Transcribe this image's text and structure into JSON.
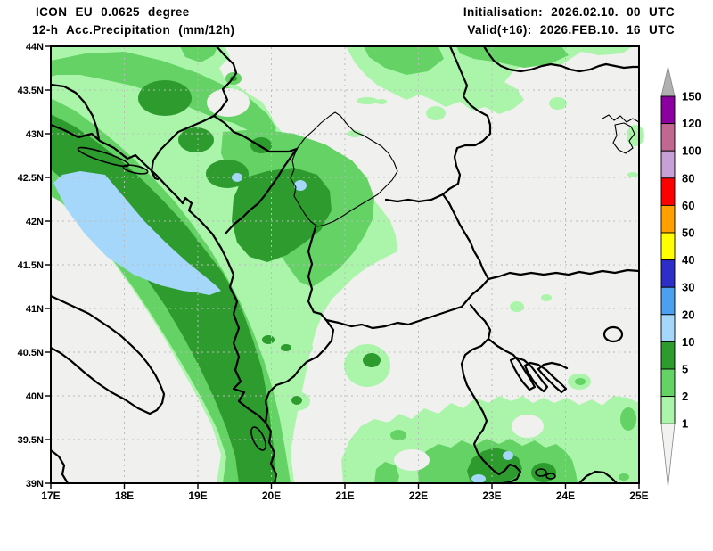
{
  "header": {
    "model_line": "ICON EU 0.0625 degree",
    "product_line": "12-h Acc.Precipitation (mm/12h)",
    "init_line": "Initialisation: 2026.02.10. 00 UTC",
    "valid_line": "Valid(+16): 2026.FEB.10. 16 UTC"
  },
  "map": {
    "extent": {
      "lon_min": 17,
      "lon_max": 25,
      "lat_min": 39,
      "lat_max": 44
    },
    "lat_axis": {
      "labels": [
        {
          "text": "44N",
          "lat": 44
        },
        {
          "text": "43.5N",
          "lat": 43.5
        },
        {
          "text": "43N",
          "lat": 43
        },
        {
          "text": "42.5N",
          "lat": 42.5
        },
        {
          "text": "42N",
          "lat": 42
        },
        {
          "text": "41.5N",
          "lat": 41.5
        },
        {
          "text": "41N",
          "lat": 41
        },
        {
          "text": "40.5N",
          "lat": 40.5
        },
        {
          "text": "40N",
          "lat": 40
        },
        {
          "text": "39.5N",
          "lat": 39.5
        },
        {
          "text": "39N",
          "lat": 39
        }
      ]
    },
    "lon_axis": {
      "labels": [
        {
          "text": "17E",
          "lon": 17
        },
        {
          "text": "18E",
          "lon": 18
        },
        {
          "text": "19E",
          "lon": 19
        },
        {
          "text": "20E",
          "lon": 20
        },
        {
          "text": "21E",
          "lon": 21
        },
        {
          "text": "22E",
          "lon": 22
        },
        {
          "text": "23E",
          "lon": 23
        },
        {
          "text": "24E",
          "lon": 24
        },
        {
          "text": "25E",
          "lon": 25
        }
      ]
    }
  },
  "legend": {
    "unit": "mm/12h",
    "boundary_labels": [
      "150",
      "120",
      "100",
      "80",
      "60",
      "50",
      "40",
      "30",
      "20",
      "10",
      "5",
      "2",
      "1"
    ],
    "segment_colors_top_to_bottom": [
      "#8c00a0",
      "#c06890",
      "#c8a0d8",
      "#ff0000",
      "#ffa000",
      "#ffff00",
      "#2d2dc8",
      "#4ba0f0",
      "#a5d7fa",
      "#2d9b2d",
      "#64d264",
      "#aaf5aa"
    ],
    "overflow_color": "#b0b0b0",
    "underflow_color": "#f2f2f0"
  },
  "palette": {
    "bg_land": "#f0f0ee",
    "precip_light_green": "#aaf5aa",
    "precip_medium_green": "#64d264",
    "precip_dark_green": "#2d9b2d",
    "precip_light_blue": "#a5d7fa",
    "grid_color": "#bcbcbc",
    "border_color": "#000000"
  }
}
